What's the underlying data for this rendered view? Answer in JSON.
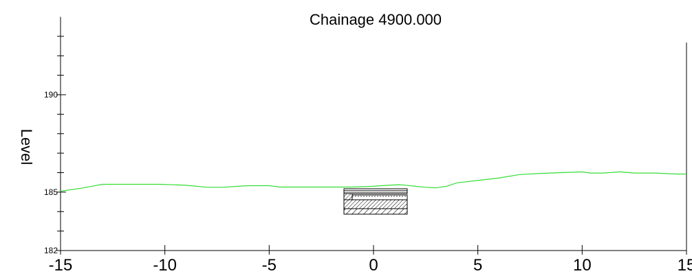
{
  "chart_data": {
    "type": "line",
    "title": "Chainage 4900.000",
    "xlabel": "",
    "ylabel": "Level",
    "xlim": [
      -15,
      15
    ],
    "ylim": [
      182,
      194
    ],
    "x_ticks": [
      -15,
      -10,
      -5,
      0,
      5,
      10,
      15
    ],
    "y_tick_labels": [
      182,
      185,
      190
    ],
    "y_minor_ticks": [
      183,
      184,
      186,
      187,
      188,
      189,
      191,
      192,
      193
    ],
    "grid": false,
    "series": [
      {
        "name": "",
        "color": "#33dd33",
        "x": [
          -15,
          -14,
          -13,
          -12,
          -11,
          -10.2,
          -9,
          -8,
          -7.2,
          -6.5,
          -6,
          -5,
          -4.5,
          -3.5,
          -2,
          -1,
          0,
          0.7,
          1.2,
          1.5,
          2,
          2.5,
          3,
          3.5,
          4,
          5,
          6,
          7,
          8,
          9,
          10,
          10.4,
          11,
          11.8,
          12.5,
          13.5,
          14.5,
          15
        ],
        "y": [
          185.05,
          185.2,
          185.4,
          185.4,
          185.4,
          185.4,
          185.35,
          185.25,
          185.25,
          185.3,
          185.33,
          185.33,
          185.26,
          185.26,
          185.26,
          185.26,
          185.3,
          185.35,
          185.38,
          185.36,
          185.3,
          185.25,
          185.22,
          185.3,
          185.48,
          185.6,
          185.72,
          185.9,
          185.96,
          186.0,
          186.04,
          185.98,
          185.98,
          186.04,
          185.98,
          185.98,
          185.93,
          185.93
        ]
      }
    ],
    "structure": {
      "name": "pavement section",
      "x_range": [
        -1.5,
        1.5
      ],
      "y_range": [
        184.47,
        185.37
      ]
    },
    "colors": {
      "axis": "#000000",
      "ground_line": "#33dd33"
    }
  }
}
